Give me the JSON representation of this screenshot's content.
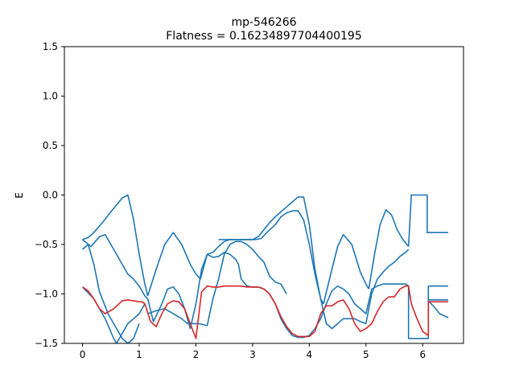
{
  "chart_data": {
    "type": "line",
    "title": "mp-546266",
    "subtitle": "Flatness = 0.16234897704400195",
    "xlabel": "",
    "ylabel": "E",
    "xlim": [
      -0.32,
      6.72
    ],
    "ylim": [
      -1.5,
      1.5
    ],
    "xticks": [
      0,
      1,
      2,
      3,
      4,
      5,
      6
    ],
    "xtick_labels": [
      "0",
      "1",
      "2",
      "3",
      "4",
      "5",
      "6"
    ],
    "yticks": [
      -1.5,
      -1.0,
      -0.5,
      0.0,
      0.5,
      1.0,
      1.5
    ],
    "ytick_labels": [
      "−1.5",
      "−1.0",
      "−0.5",
      "0.0",
      "0.5",
      "1.0",
      "1.5"
    ],
    "grid": false,
    "colors": {
      "bands": "#1f77b4",
      "flat_band": "#d62728"
    },
    "series": [
      {
        "color": "#1f77b4",
        "x": [
          0,
          0.1,
          0.2,
          0.35,
          0.5,
          0.6,
          0.7,
          0.8,
          0.9,
          1.0,
          1.1,
          1.15
        ],
        "y": [
          -0.45,
          -0.43,
          -0.38,
          -0.28,
          -0.17,
          -0.1,
          -0.03,
          0,
          -0.25,
          -0.6,
          -0.9,
          -1.02
        ]
      },
      {
        "color": "#1f77b4",
        "x": [
          1.15,
          1.3,
          1.45,
          1.6,
          1.75,
          1.9,
          2.0,
          2.08
        ],
        "y": [
          -1.02,
          -0.75,
          -0.5,
          -0.38,
          -0.5,
          -0.7,
          -0.8,
          -0.85
        ]
      },
      {
        "color": "#1f77b4",
        "x": [
          2.08,
          2.2,
          2.3,
          2.4,
          2.5,
          2.6,
          2.7,
          2.8,
          3.0,
          3.1,
          3.2,
          3.3,
          3.4,
          3.5,
          3.6,
          3.7,
          3.8,
          3.9,
          4.0,
          4.1,
          4.2,
          4.25
        ],
        "y": [
          -0.85,
          -0.6,
          -0.58,
          -0.52,
          -0.47,
          -0.45,
          -0.45,
          -0.45,
          -0.45,
          -0.42,
          -0.35,
          -0.28,
          -0.22,
          -0.17,
          -0.12,
          -0.07,
          -0.02,
          -0.02,
          -0.3,
          -0.75,
          -1.05,
          -1.1
        ]
      },
      {
        "color": "#1f77b4",
        "x": [
          4.25,
          4.4,
          4.5,
          4.6,
          4.75,
          4.9,
          5.0,
          5.05
        ],
        "y": [
          -1.1,
          -0.75,
          -0.52,
          -0.4,
          -0.5,
          -0.78,
          -0.9,
          -0.95
        ]
      },
      {
        "color": "#1f77b4",
        "x": [
          5.05,
          5.15,
          5.25,
          5.35,
          5.45,
          5.55,
          5.65,
          5.75
        ],
        "y": [
          -0.95,
          -0.6,
          -0.3,
          -0.15,
          -0.2,
          -0.35,
          -0.45,
          -0.52
        ]
      },
      {
        "color": "#1f77b4",
        "x": [
          5.75,
          5.8,
          6.08,
          6.08,
          6.45
        ],
        "y": [
          -0.52,
          0,
          0,
          -0.38,
          -0.38
        ]
      },
      {
        "color": "#1f77b4",
        "x": [
          0,
          0.15,
          0.3,
          0.4,
          0.55,
          0.7,
          0.8,
          0.9,
          1.0,
          1.1,
          1.15
        ],
        "y": [
          -0.45,
          -0.52,
          -0.42,
          -0.4,
          -0.55,
          -0.7,
          -0.8,
          -0.85,
          -0.92,
          -1.02,
          -1.05
        ]
      },
      {
        "color": "#1f77b4",
        "x": [
          0,
          0.1,
          0.2,
          0.3,
          0.45,
          0.6,
          0.7,
          0.8,
          0.9,
          1.0
        ],
        "y": [
          -0.55,
          -0.5,
          -0.7,
          -0.98,
          -1.2,
          -1.35,
          -1.45,
          -1.5,
          -1.45,
          -1.3
        ]
      },
      {
        "color": "#1f77b4",
        "x": [
          0,
          0.2,
          0.4,
          0.55,
          0.6,
          0.7,
          0.8,
          0.9,
          1.0,
          1.1
        ],
        "y": [
          -0.93,
          -1.05,
          -1.25,
          -1.45,
          -1.5,
          -1.4,
          -1.3,
          -1.25,
          -1.2,
          -1.1
        ]
      },
      {
        "color": "#1f77b4",
        "x": [
          1.15,
          1.25,
          1.4,
          1.5,
          1.6,
          1.7,
          1.8,
          1.9,
          2.0,
          2.1,
          2.2,
          2.3,
          2.4,
          2.5,
          2.6,
          2.7,
          2.75
        ],
        "y": [
          -1.05,
          -1.28,
          -1.1,
          -0.95,
          -0.93,
          -1.0,
          -1.15,
          -1.35,
          -1.1,
          -0.75,
          -0.6,
          -0.63,
          -0.62,
          -0.58,
          -0.6,
          -0.65,
          -0.7
        ]
      },
      {
        "color": "#1f77b4",
        "x": [
          2.75,
          2.8,
          2.9,
          3.0,
          3.1,
          3.2,
          3.3,
          3.4,
          3.5,
          3.6,
          3.7,
          3.8,
          3.9,
          4.0,
          4.1,
          4.2,
          4.3,
          4.4,
          4.5,
          4.6
        ],
        "y": [
          -0.7,
          -0.85,
          -0.92,
          -0.93,
          -0.93,
          -0.95,
          -1.0,
          -1.1,
          -1.25,
          -1.35,
          -1.42,
          -1.44,
          -1.44,
          -1.42,
          -1.35,
          -1.25,
          -1.1,
          -0.97,
          -0.92,
          -0.95
        ]
      },
      {
        "color": "#1f77b4",
        "x": [
          4.6,
          4.7,
          4.8,
          4.9,
          5.0,
          5.1,
          5.2,
          5.3,
          5.4,
          5.5,
          5.6,
          5.7,
          5.75
        ],
        "y": [
          -0.95,
          -1.0,
          -1.1,
          -1.15,
          -1.2,
          -0.95,
          -0.92,
          -0.9,
          -0.9,
          -0.9,
          -0.9,
          -0.9,
          -0.92
        ]
      },
      {
        "color": "#1f77b4",
        "x": [
          5.75,
          5.75,
          6.1,
          6.1,
          6.45
        ],
        "y": [
          -0.92,
          -1.45,
          -1.45,
          -0.92,
          -0.92
        ]
      },
      {
        "color": "#1f77b4",
        "x": [
          1.15,
          1.3,
          1.45,
          1.6,
          1.75,
          1.85,
          1.95,
          2.05,
          2.2,
          2.3,
          2.4,
          2.5,
          2.6,
          2.7,
          2.8,
          2.9,
          3.0,
          3.1,
          3.2,
          3.3,
          3.4,
          3.5,
          3.6
        ],
        "y": [
          -1.2,
          -1.17,
          -1.15,
          -1.2,
          -1.25,
          -1.3,
          -1.3,
          -1.3,
          -1.32,
          -1.05,
          -0.85,
          -0.6,
          -0.5,
          -0.47,
          -0.47,
          -0.5,
          -0.55,
          -0.62,
          -0.68,
          -0.82,
          -0.88,
          -0.9,
          -1.0
        ]
      },
      {
        "color": "#1f77b4",
        "x": [
          2.4,
          2.5,
          2.6,
          2.65,
          2.7,
          2.8,
          2.95,
          3.05,
          3.15,
          3.25,
          3.4,
          3.5,
          3.6,
          3.7,
          3.8,
          3.9,
          4.0,
          4.1,
          4.2
        ],
        "y": [
          -0.45,
          -0.45,
          -0.45,
          -0.45,
          -0.45,
          -0.45,
          -0.45,
          -0.45,
          -0.44,
          -0.38,
          -0.3,
          -0.22,
          -0.18,
          -0.16,
          -0.16,
          -0.25,
          -0.5,
          -0.8,
          -1.05
        ]
      },
      {
        "color": "#1f77b4",
        "x": [
          4.2,
          4.3,
          4.4,
          4.5,
          4.6,
          4.7,
          4.8,
          4.9,
          5.0,
          5.1,
          5.2,
          5.3,
          5.4,
          5.5,
          5.6,
          5.7,
          5.75
        ],
        "y": [
          -1.05,
          -1.3,
          -1.35,
          -1.3,
          -1.25,
          -1.25,
          -1.25,
          -1.28,
          -1.3,
          -1.0,
          -0.85,
          -0.78,
          -0.72,
          -0.68,
          -0.62,
          -0.58,
          -0.55
        ]
      },
      {
        "color": "#1f77b4",
        "x": [
          6.1,
          6.2,
          6.3,
          6.45
        ],
        "y": [
          -1.07,
          -1.13,
          -1.2,
          -1.24
        ]
      },
      {
        "color": "#1f77b4",
        "x": [
          6.1,
          6.45
        ],
        "y": [
          -1.06,
          -1.06
        ]
      },
      {
        "color": "#d62728",
        "x": [
          0,
          0.1,
          0.2,
          0.3,
          0.4,
          0.55,
          0.7,
          0.8,
          0.9,
          1.0,
          1.05,
          1.1,
          1.2,
          1.3,
          1.4,
          1.5,
          1.6,
          1.7,
          1.8,
          1.9,
          2.0,
          2.1,
          2.2,
          2.3,
          2.4,
          2.5,
          2.6,
          2.7,
          2.8,
          2.9,
          3.0,
          3.1,
          3.2,
          3.3,
          3.4,
          3.5,
          3.6,
          3.7,
          3.8,
          3.9,
          4.0,
          4.1,
          4.2,
          4.3,
          4.4,
          4.5,
          4.6,
          4.7,
          4.8,
          4.9,
          5.0,
          5.1,
          5.2,
          5.3,
          5.4,
          5.5,
          5.6,
          5.7,
          5.75,
          5.8,
          5.9,
          6.0,
          6.1,
          6.1,
          6.45
        ],
        "y": [
          -0.93,
          -0.97,
          -1.05,
          -1.15,
          -1.2,
          -1.15,
          -1.07,
          -1.06,
          -1.07,
          -1.08,
          -1.08,
          -1.1,
          -1.28,
          -1.33,
          -1.2,
          -1.1,
          -1.07,
          -1.08,
          -1.15,
          -1.3,
          -1.45,
          -0.98,
          -0.92,
          -0.93,
          -0.93,
          -0.92,
          -0.92,
          -0.92,
          -0.92,
          -0.93,
          -0.93,
          -0.93,
          -0.95,
          -1.0,
          -1.1,
          -1.23,
          -1.33,
          -1.4,
          -1.43,
          -1.43,
          -1.43,
          -1.38,
          -1.2,
          -1.12,
          -1.12,
          -1.08,
          -1.06,
          -1.15,
          -1.3,
          -1.38,
          -1.35,
          -1.3,
          -1.18,
          -1.08,
          -1.03,
          -1.03,
          -0.95,
          -0.92,
          -0.92,
          -1.1,
          -1.25,
          -1.38,
          -1.42,
          -1.08,
          -1.08
        ]
      }
    ]
  }
}
